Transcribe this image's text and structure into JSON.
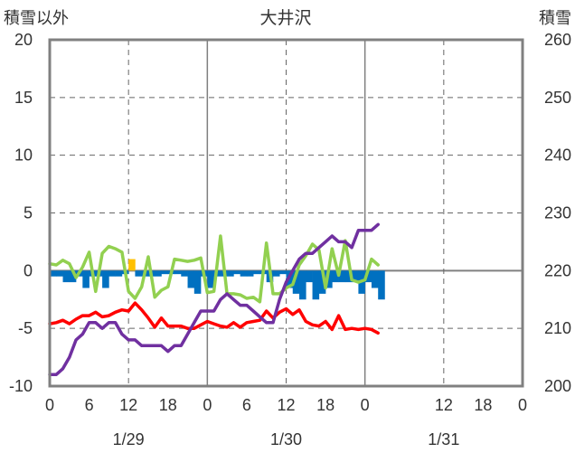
{
  "chart_data": {
    "type": "line",
    "title": "大井沢",
    "ylabel_left": "積雪以外",
    "ylabel_right": "積雪",
    "ylim_left": [
      -10,
      20
    ],
    "ylim_right": [
      200,
      260
    ],
    "yticks_left": [
      20,
      15,
      10,
      5,
      0,
      -5,
      -10
    ],
    "yticks_right": [
      260,
      250,
      240,
      230,
      220,
      210,
      200
    ],
    "xlim_hours": [
      0,
      72
    ],
    "xticks_labels": [
      "0",
      "6",
      "12",
      "18",
      "0",
      "6",
      "12",
      "18",
      "0",
      "12",
      "18",
      "0"
    ],
    "xticks_hours": [
      0,
      6,
      12,
      18,
      24,
      30,
      36,
      42,
      48,
      60,
      66,
      72
    ],
    "date_labels": [
      {
        "label": "1/29",
        "hour": 12
      },
      {
        "label": "1/30",
        "hour": 36
      },
      {
        "label": "1/31",
        "hour": 60
      }
    ],
    "grid": true,
    "x": [
      0,
      1,
      2,
      3,
      4,
      5,
      6,
      7,
      8,
      9,
      10,
      11,
      12,
      13,
      14,
      15,
      16,
      17,
      18,
      19,
      20,
      21,
      22,
      23,
      24,
      25,
      26,
      27,
      28,
      29,
      30,
      31,
      32,
      33,
      34,
      35,
      36,
      37,
      38,
      39,
      40,
      41,
      42,
      43,
      44,
      45,
      46,
      47,
      48,
      49,
      50
    ],
    "series": [
      {
        "color": "#0070c0",
        "kind": "bar",
        "axis": "left",
        "values": [
          -0.5,
          -0.5,
          -1,
          -1,
          -0.5,
          -1.5,
          -0.5,
          -0.5,
          -1.5,
          -0.5,
          -0.5,
          -0.3,
          1,
          -0.5,
          -0.5,
          -0.5,
          -0.5,
          -0.3,
          -0.3,
          -0.3,
          -0.5,
          -1.5,
          -2,
          -0.5,
          -1.5,
          -0.5,
          -0.5,
          -0.5,
          -0.3,
          -0.5,
          -0.5,
          -0.3,
          -0.3,
          -1,
          -0.5,
          -0.3,
          -1.5,
          -2,
          -2.5,
          -1,
          -2.5,
          -2,
          -1.5,
          -1,
          -1,
          -1,
          -1,
          -2,
          -1,
          -1.5,
          -2.5
        ]
      },
      {
        "color": "#ff0000",
        "kind": "line",
        "axis": "left",
        "values": [
          -4.6,
          -4.5,
          -4.3,
          -4.6,
          -4.2,
          -3.9,
          -3.9,
          -3.6,
          -4.0,
          -3.9,
          -3.6,
          -3.4,
          -3.5,
          -2.8,
          -3.4,
          -4.1,
          -4.9,
          -4.1,
          -4.8,
          -4.8,
          -4.8,
          -5.0,
          -5.0,
          -4.7,
          -4.4,
          -4.6,
          -4.8,
          -4.9,
          -4.5,
          -4.9,
          -4.5,
          -4.4,
          -4.3,
          -3.5,
          -4.1,
          -3.6,
          -3.3,
          -3.8,
          -3.4,
          -4.4,
          -4.7,
          -4.8,
          -4.4,
          -5.1,
          -3.9,
          -5.1,
          -5.0,
          -5.1,
          -5.0,
          -5.1,
          -5.4
        ]
      },
      {
        "color": "#92d050",
        "kind": "line",
        "axis": "left",
        "values": [
          0.6,
          0.5,
          0.9,
          0.6,
          -0.6,
          0.3,
          1.6,
          -1.8,
          1.5,
          2.1,
          1.9,
          1.6,
          -1.8,
          -2.4,
          -1.4,
          1.2,
          -2.3,
          -1.7,
          -1.4,
          1.0,
          0.9,
          0.8,
          0.9,
          1.1,
          -1.9,
          -1.8,
          3.0,
          -2.0,
          -2.0,
          -2.1,
          -2.4,
          -2.3,
          -2.7,
          2.4,
          -2.0,
          -2.0,
          -1.5,
          -1.2,
          0.5,
          1.3,
          2.3,
          1.8,
          -1.5,
          1.9,
          -0.4,
          2.6,
          -0.8,
          -1.0,
          -0.8,
          1.0,
          0.5
        ]
      },
      {
        "color": "#7030a0",
        "kind": "line",
        "axis": "right",
        "values": [
          202,
          202,
          203,
          205,
          208,
          209,
          211,
          211,
          210,
          211,
          211,
          209,
          208,
          208,
          207,
          207,
          207,
          207,
          206,
          207,
          207,
          209,
          211,
          213,
          213,
          213,
          215,
          216,
          215,
          214,
          214,
          213,
          212,
          211,
          211,
          215,
          218,
          220,
          222,
          223,
          223,
          224,
          225,
          226,
          225,
          225,
          224,
          227,
          227,
          227,
          228
        ]
      }
    ]
  }
}
